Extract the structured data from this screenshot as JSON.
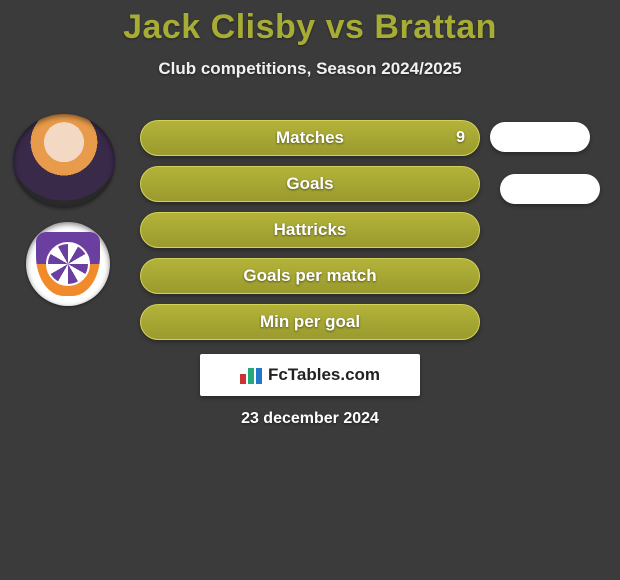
{
  "title": "Jack Clisby vs Brattan",
  "subtitle": "Club competitions, Season 2024/2025",
  "avatars": {
    "player_name": "Jack Clisby",
    "team_name": "Perth Glory"
  },
  "stats": {
    "rows": [
      {
        "label": "Matches",
        "value": "9",
        "show_value": true
      },
      {
        "label": "Goals",
        "value": "",
        "show_value": false
      },
      {
        "label": "Hattricks",
        "value": "",
        "show_value": false
      },
      {
        "label": "Goals per match",
        "value": "",
        "show_value": false
      },
      {
        "label": "Min per goal",
        "value": "",
        "show_value": false
      }
    ],
    "bar_color": "#a7ac35",
    "bar_border": "#d2d259",
    "text_color": "#ffffff"
  },
  "opponent_pills_count": 2,
  "banner": {
    "text": "FcTables.com"
  },
  "date": "23 december 2024",
  "colors": {
    "background": "#3b3b3b",
    "accent": "#a7ac35",
    "pill": "#ffffff"
  }
}
